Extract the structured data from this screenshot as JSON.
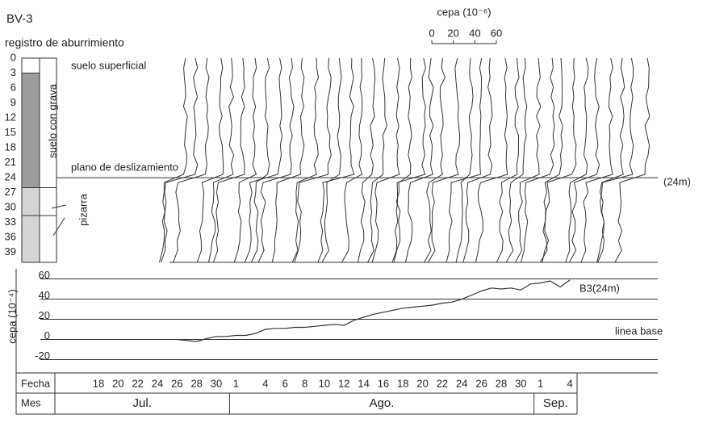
{
  "chart_data": [
    {
      "type": "profile",
      "title": "BV-3",
      "subtitle": "registro de aburrimiento",
      "ylim": [
        0,
        41
      ],
      "yticks": [
        0,
        3,
        6,
        9,
        12,
        15,
        18,
        21,
        24,
        27,
        30,
        33,
        36,
        39
      ],
      "xlabel": "cepa (10⁻⁶)",
      "xlim": [
        0,
        60
      ],
      "xticks": [
        0,
        20,
        40,
        60
      ],
      "layers": [
        {
          "label": "suelo superficial",
          "top": 0,
          "bottom": 3,
          "color": "#ffffff"
        },
        {
          "label": "suelo con grava",
          "top": 3,
          "bottom": 26,
          "color": "#9c9c9c"
        },
        {
          "label": "pizarra",
          "top": 26,
          "bottom": 41,
          "color": "#d4d4d4"
        }
      ],
      "slip_plane": {
        "label": "plano de deslizamiento",
        "depth": 24,
        "depth_label": "(24m)"
      }
    },
    {
      "type": "line",
      "ylabel": "cepa (10⁻⁴)",
      "ylim": [
        -30,
        70
      ],
      "yticks": [
        -20,
        0,
        20,
        40,
        60
      ],
      "annotation": "linea base",
      "x_title": "Fecha",
      "month_title": "Mes",
      "months": [
        "Jul.",
        "Ago.",
        "Sep."
      ],
      "categories": [
        "18",
        null,
        "20",
        null,
        "22",
        null,
        "24",
        null,
        "26",
        null,
        "28",
        null,
        "30",
        null,
        "1",
        null,
        null,
        "4",
        null,
        "6",
        null,
        "8",
        null,
        "10",
        null,
        "12",
        null,
        "14",
        null,
        "16",
        null,
        "18",
        null,
        "20",
        null,
        "22",
        null,
        "24",
        null,
        "26",
        null,
        "28",
        null,
        "30",
        null,
        "1",
        null,
        null,
        "4"
      ],
      "series": [
        {
          "name": "B3(24m)",
          "color": "#333333",
          "values": [
            null,
            null,
            null,
            null,
            null,
            null,
            null,
            null,
            0,
            -1,
            -2,
            1,
            3,
            3,
            4,
            4,
            6,
            10,
            11,
            11,
            12,
            12,
            13,
            14,
            15,
            14,
            19,
            22,
            25,
            27,
            29,
            31,
            32,
            33,
            34,
            36,
            37,
            40,
            44,
            48,
            51,
            50,
            51,
            49,
            55,
            56,
            58,
            52,
            59
          ]
        }
      ]
    }
  ]
}
